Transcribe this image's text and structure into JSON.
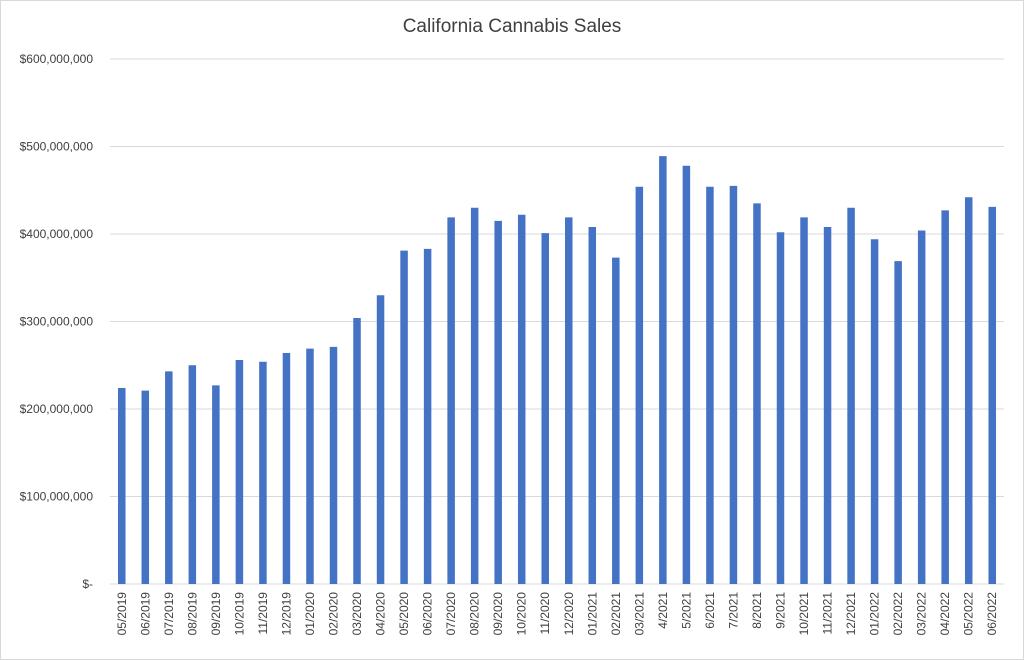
{
  "chart_data": {
    "type": "bar",
    "title": "California Cannabis Sales",
    "xlabel": "",
    "ylabel": "",
    "ylim": [
      0,
      600000000
    ],
    "yticks": [
      0,
      100000000,
      200000000,
      300000000,
      400000000,
      500000000,
      600000000
    ],
    "ytick_labels": [
      "$-",
      "$100,000,000",
      "$200,000,000",
      "$300,000,000",
      "$400,000,000",
      "$500,000,000",
      "$600,000,000"
    ],
    "grid": true,
    "legend": "none",
    "bar_color": "#4472c4",
    "grid_color": "#d9d9d9",
    "categories": [
      "05/2019",
      "06/2019",
      "07/2019",
      "08/2019",
      "09/2019",
      "10/2019",
      "11/2019",
      "12/2019",
      "01/2020",
      "02/2020",
      "03/2020",
      "04/2020",
      "05/2020",
      "06/2020",
      "07/2020",
      "08/2020",
      "09/2020",
      "10/2020",
      "11/2020",
      "12/2020",
      "01/2021",
      "02/2021",
      "03/2021",
      "4/2021",
      "5/2021",
      "6/2021",
      "7/2021",
      "8/2021",
      "9/2021",
      "10/2021",
      "11/2021",
      "12/2021",
      "01/2022",
      "02/2022",
      "03/2022",
      "04/2022",
      "05/2022",
      "06/2022"
    ],
    "values": [
      224000000,
      221000000,
      243000000,
      250000000,
      227000000,
      256000000,
      254000000,
      264000000,
      269000000,
      271000000,
      304000000,
      330000000,
      381000000,
      383000000,
      419000000,
      430000000,
      415000000,
      422000000,
      401000000,
      419000000,
      408000000,
      373000000,
      454000000,
      489000000,
      478000000,
      454000000,
      455000000,
      435000000,
      402000000,
      419000000,
      408000000,
      430000000,
      394000000,
      369000000,
      404000000,
      427000000,
      442000000,
      431000000
    ]
  }
}
